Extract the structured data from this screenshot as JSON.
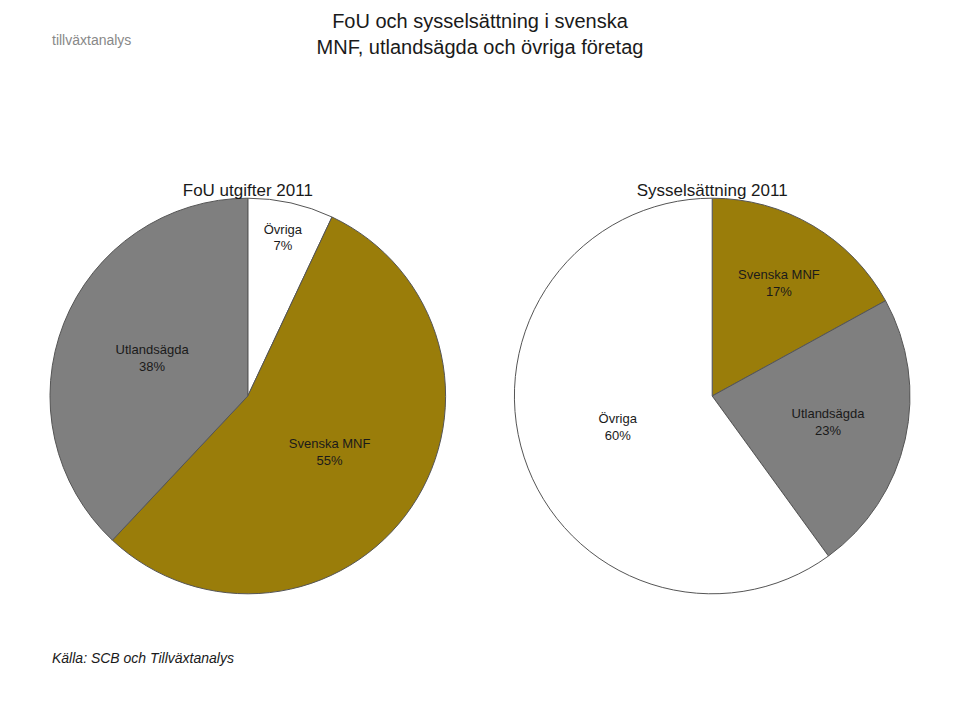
{
  "title": [
    "FoU och sysselsättning i svenska",
    "MNF, utlandsägda och övriga företag"
  ],
  "annotations": [
    "tillväxtanalys",
    "Källa: SCB och Tillväxtanalys"
  ],
  "chart_data": [
    {
      "type": "pie",
      "title": "FoU utgifter 2011",
      "categories": [
        "Övriga",
        "Svenska MNF",
        "Utlandsägda"
      ],
      "values": [
        7,
        55,
        38
      ],
      "value_labels": [
        "7%",
        "55%",
        "38%"
      ],
      "colors": [
        "#ffffff",
        "#9a7d0a",
        "#7f7f7f"
      ],
      "data_labels": true
    },
    {
      "type": "pie",
      "title": "Sysselsättning 2011",
      "categories": [
        "Svenska MNF",
        "Utlandsägda",
        "Övriga"
      ],
      "values": [
        17,
        23,
        60
      ],
      "value_labels": [
        "17%",
        "23%",
        "60%"
      ],
      "colors": [
        "#9a7d0a",
        "#7f7f7f",
        "#ffffff"
      ],
      "data_labels": true
    }
  ]
}
